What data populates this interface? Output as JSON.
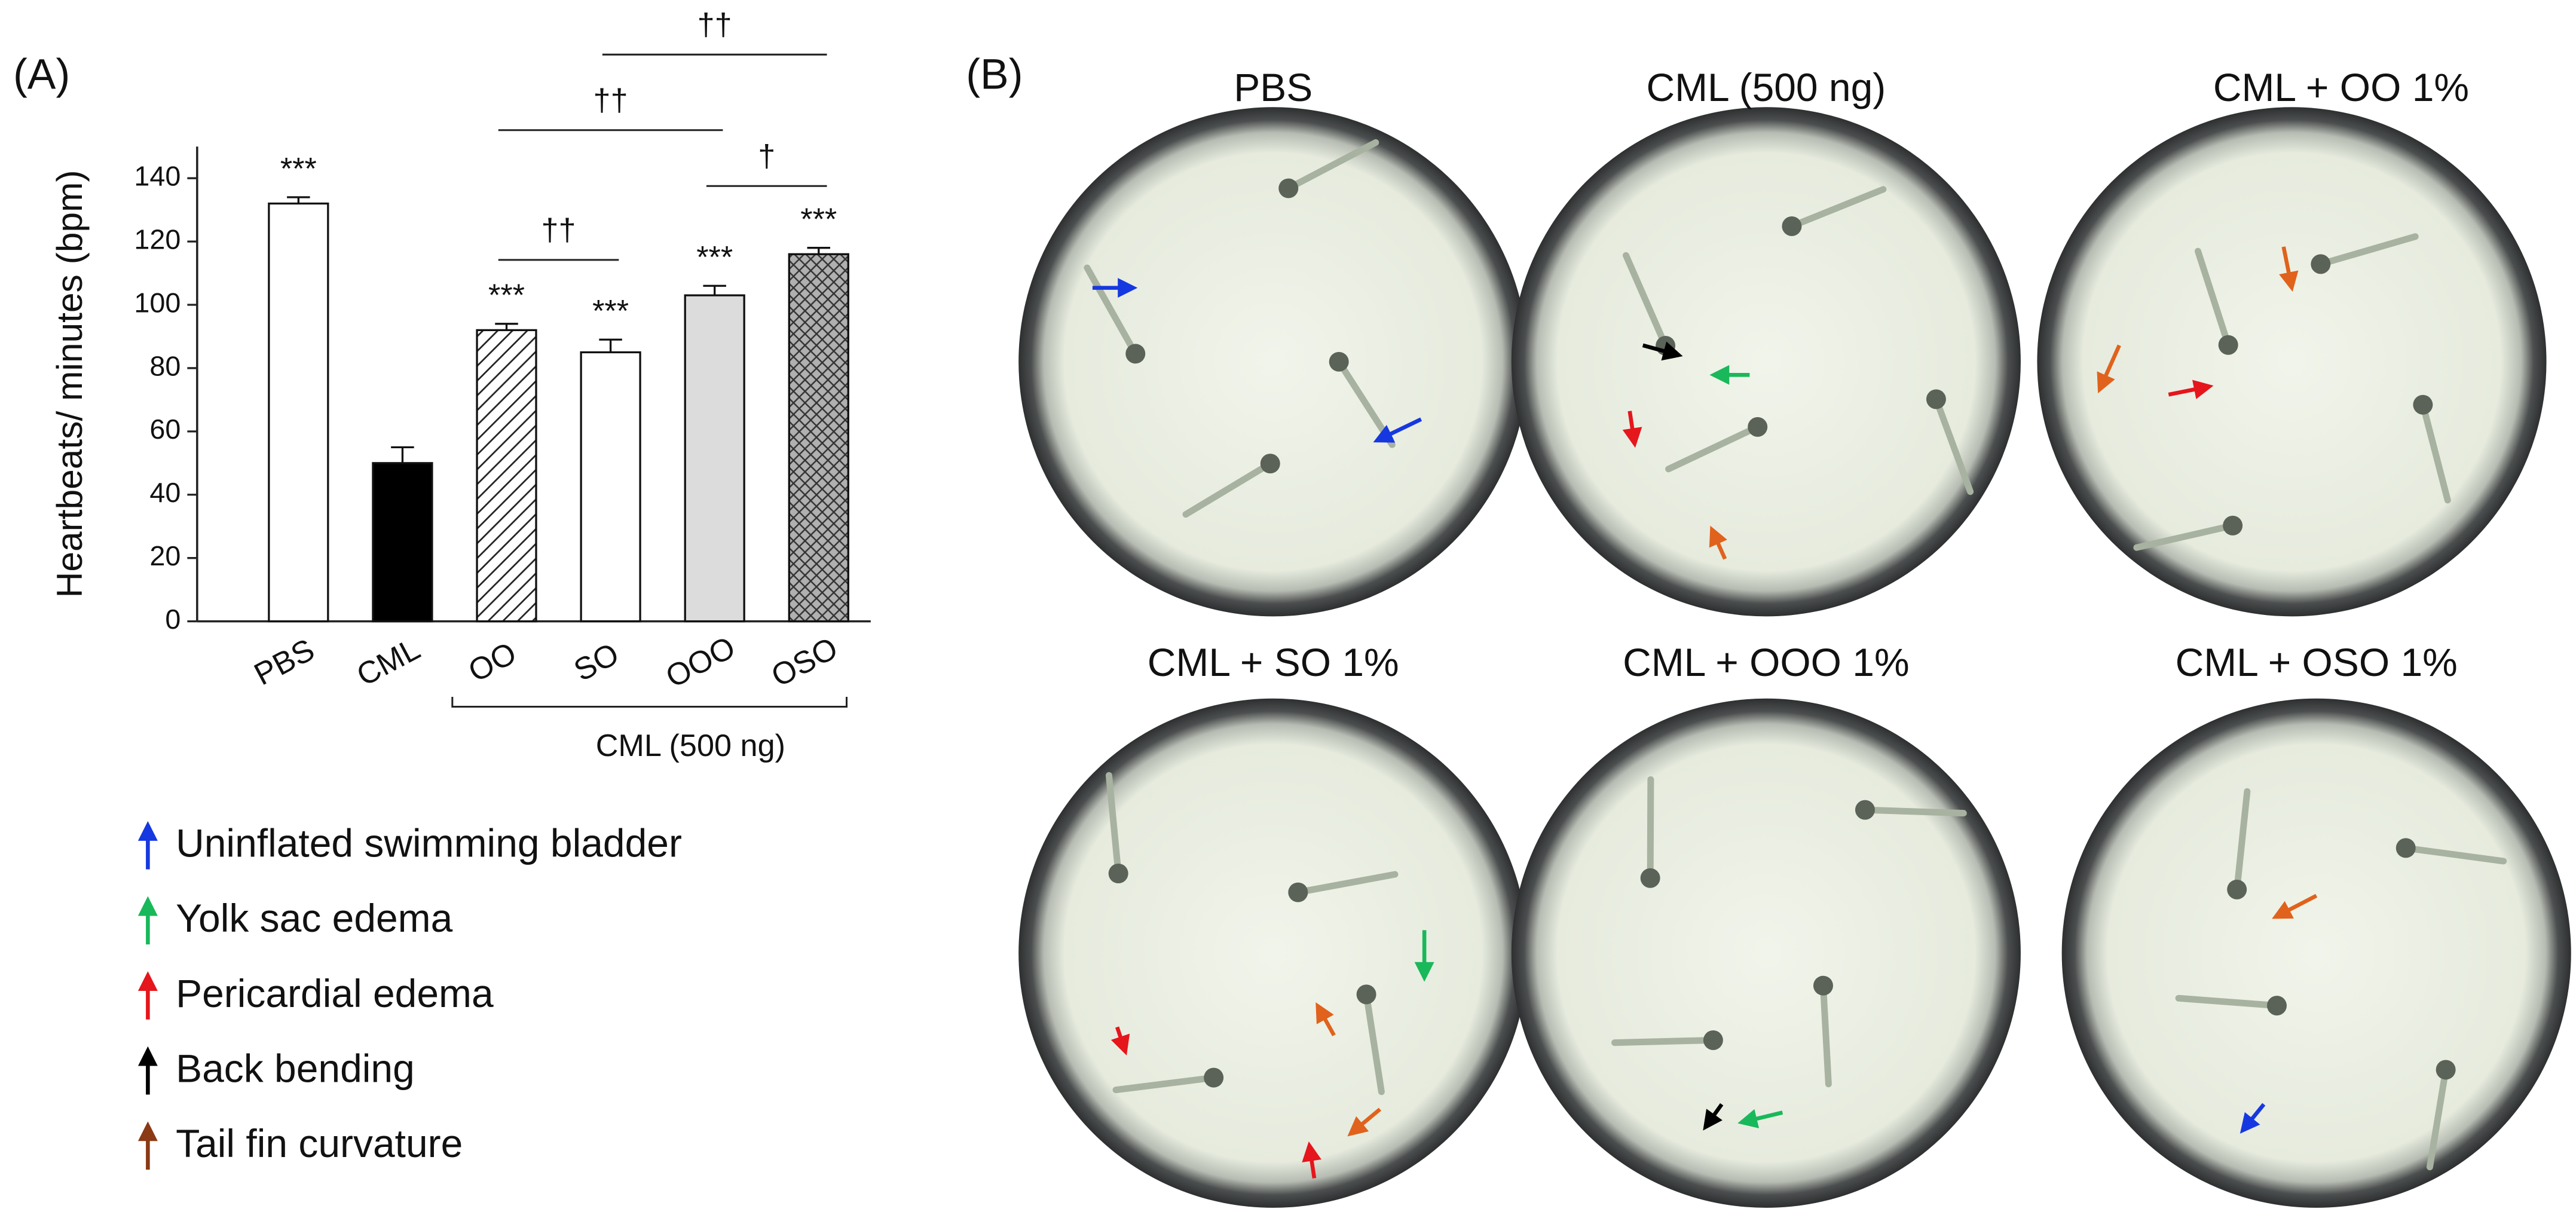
{
  "panel_a_label": "(A)",
  "panel_b_label": "(B)",
  "chart_data": {
    "type": "bar",
    "ylabel": "Heartbeats/ minutes (bpm)",
    "categories": [
      "PBS",
      "CML",
      "OO",
      "SO",
      "OOO",
      "OSO"
    ],
    "values": [
      132,
      50,
      92,
      85,
      103,
      116
    ],
    "errors": [
      2,
      5,
      2,
      4,
      3,
      2
    ],
    "annotations": [
      "***",
      null,
      "***",
      "***",
      "***",
      "***"
    ],
    "colors": [
      "#ffffff",
      "#000000",
      "#ffffff",
      "#ffffff",
      "#dcdcdc",
      "#b0b0b0"
    ],
    "patterns": [
      "none",
      "none",
      "/",
      "\\",
      "none",
      "x"
    ],
    "comparisons": [
      {
        "between": [
          "OO",
          "SO"
        ],
        "label": "††"
      },
      {
        "between": [
          "OOO",
          "OSO"
        ],
        "label": "†"
      },
      {
        "between": [
          "OO",
          "OOO"
        ],
        "label": "††"
      },
      {
        "between": [
          "SO",
          "OSO"
        ],
        "label": "††"
      }
    ],
    "group": {
      "between": [
        "OO",
        "OSO"
      ],
      "label": "CML (500 ng)"
    },
    "ylim": [
      0,
      150
    ],
    "yticks": [
      0,
      20,
      40,
      60,
      80,
      100,
      120,
      140
    ]
  },
  "legend": [
    {
      "label": "Uninflated swimming bladder",
      "color": "#1638e0"
    },
    {
      "label": "Yolk sac edema",
      "color": "#19b85a"
    },
    {
      "label": "Pericardial edema",
      "color": "#e5161c"
    },
    {
      "label": "Back bending",
      "color": "#000000"
    },
    {
      "label": "Tail fin curvature",
      "color": "#8a3a14"
    }
  ],
  "photos": [
    "PBS",
    "CML (500 ng)",
    "CML + OO 1%",
    "CML + SO 1%",
    "CML + OOO 1%",
    "CML + OSO 1%"
  ]
}
